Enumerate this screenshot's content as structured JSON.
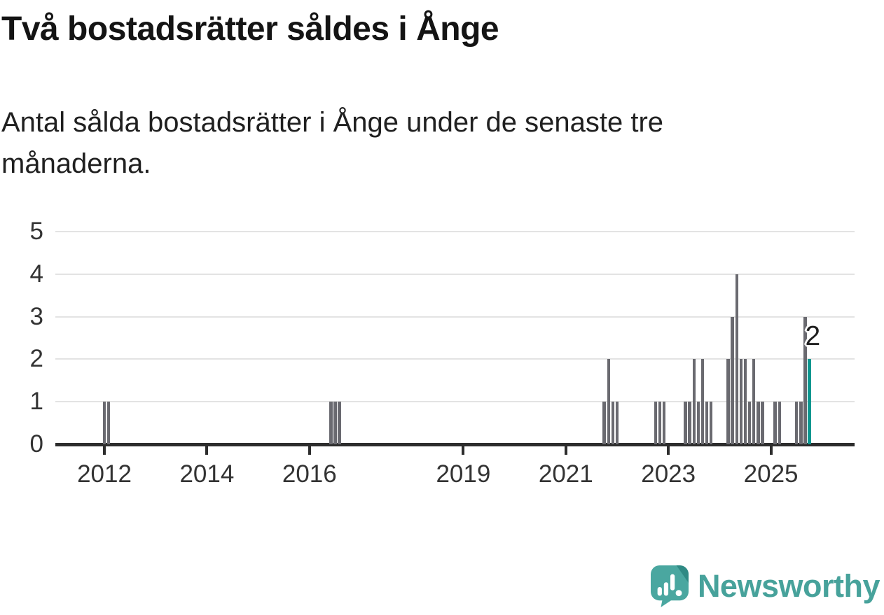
{
  "header": {
    "title": "Två bostadsrätter såldes i Ånge",
    "subtitle_lines": [
      "Antal sålda bostadsrätter i Ånge under de senaste tre",
      "månaderna."
    ]
  },
  "chart_data": {
    "type": "bar",
    "title": "Två bostadsrätter såldes i Ånge",
    "xlabel": "",
    "ylabel": "",
    "ylim": [
      0,
      5
    ],
    "y_ticks": [
      0,
      1,
      2,
      3,
      4,
      5
    ],
    "x_tick_labels": [
      "2012",
      "2014",
      "2016",
      "2019",
      "2021",
      "2023",
      "2025"
    ],
    "grid": true,
    "legend": false,
    "bar_color": "#6a6a70",
    "highlight_color": "#0c968f",
    "last_value_label": "2",
    "bars": [
      {
        "month": "2012-01",
        "value": 1
      },
      {
        "month": "2012-02",
        "value": 1
      },
      {
        "month": "2016-06",
        "value": 1
      },
      {
        "month": "2016-07",
        "value": 1
      },
      {
        "month": "2016-08",
        "value": 1
      },
      {
        "month": "2021-10",
        "value": 1
      },
      {
        "month": "2021-11",
        "value": 2
      },
      {
        "month": "2021-12",
        "value": 1
      },
      {
        "month": "2022-01",
        "value": 1
      },
      {
        "month": "2022-10",
        "value": 1
      },
      {
        "month": "2022-11",
        "value": 1
      },
      {
        "month": "2022-12",
        "value": 1
      },
      {
        "month": "2023-05",
        "value": 1
      },
      {
        "month": "2023-06",
        "value": 1
      },
      {
        "month": "2023-07",
        "value": 2
      },
      {
        "month": "2023-08",
        "value": 1
      },
      {
        "month": "2023-09",
        "value": 2
      },
      {
        "month": "2023-10",
        "value": 1
      },
      {
        "month": "2023-11",
        "value": 1
      },
      {
        "month": "2024-03",
        "value": 2
      },
      {
        "month": "2024-04",
        "value": 3
      },
      {
        "month": "2024-05",
        "value": 4
      },
      {
        "month": "2024-06",
        "value": 2
      },
      {
        "month": "2024-07",
        "value": 2
      },
      {
        "month": "2024-08",
        "value": 1
      },
      {
        "month": "2024-09",
        "value": 2
      },
      {
        "month": "2024-10",
        "value": 1
      },
      {
        "month": "2024-11",
        "value": 1
      },
      {
        "month": "2025-02",
        "value": 1
      },
      {
        "month": "2025-03",
        "value": 1
      },
      {
        "month": "2025-07",
        "value": 1
      },
      {
        "month": "2025-08",
        "value": 1
      },
      {
        "month": "2025-09",
        "value": 3
      },
      {
        "month": "2025-10",
        "value": 2,
        "highlight": true
      }
    ]
  },
  "footer": {
    "brand": "Newsworthy",
    "logo_icon": "newsworthy-speech-bubble-bar-chart-icon",
    "brand_color": "#47a29b"
  }
}
